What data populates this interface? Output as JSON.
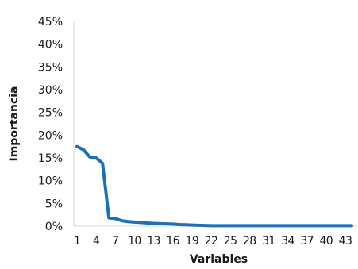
{
  "chart_data": {
    "type": "line",
    "xlabel": "Variables",
    "ylabel": "Importancia",
    "x": [
      1,
      2,
      3,
      4,
      5,
      6,
      7,
      8,
      9,
      10,
      11,
      12,
      13,
      14,
      15,
      16,
      17,
      18,
      19,
      20,
      21,
      22,
      23,
      24,
      25,
      26,
      27,
      28,
      29,
      30,
      31,
      32,
      33,
      34,
      35,
      36,
      37,
      38,
      39,
      40,
      41,
      42,
      43,
      44
    ],
    "x_tick_labels": [
      "1",
      "4",
      "7",
      "10",
      "13",
      "16",
      "19",
      "22",
      "25",
      "28",
      "31",
      "34",
      "37",
      "40",
      "43"
    ],
    "y_tick_labels": [
      "0%",
      "5%",
      "10%",
      "15%",
      "20%",
      "25%",
      "30%",
      "35%",
      "40%",
      "45%"
    ],
    "ylim": [
      0,
      45
    ],
    "y_unit": "%",
    "series": [
      {
        "values": [
          17.5,
          16.8,
          15.2,
          15.0,
          13.8,
          1.8,
          1.7,
          1.2,
          1.0,
          0.9,
          0.8,
          0.7,
          0.6,
          0.55,
          0.5,
          0.45,
          0.35,
          0.3,
          0.25,
          0.2,
          0.15,
          0.1,
          0.1,
          0.1,
          0.1,
          0.1,
          0.1,
          0.1,
          0.1,
          0.1,
          0.1,
          0.1,
          0.1,
          0.1,
          0.1,
          0.1,
          0.1,
          0.1,
          0.1,
          0.1,
          0.1,
          0.1,
          0.1,
          0.1
        ],
        "color": "#1f6fb4"
      }
    ],
    "grid": false,
    "legend": "none"
  }
}
